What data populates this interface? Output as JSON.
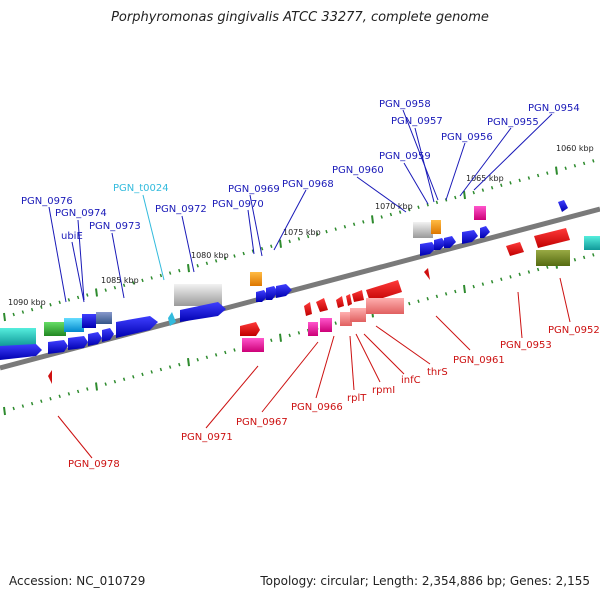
{
  "title": "Porphyromonas gingivalis ATCC 33277, complete genome",
  "footer": {
    "accession": "Accession: NC_010729",
    "summary": "Topology: circular; Length: 2,354,886 bp; Genes: 2,155"
  },
  "colors": {
    "plus_label": "#1a1ab8",
    "minus_label": "#cc1111",
    "rna_label": "#33bbdd",
    "backbone": "#808080",
    "tick": "#2e8b2e"
  },
  "kbp_markers": [
    "1090 kbp",
    "1085 kbp",
    "1080 kbp",
    "1075 kbp",
    "1070 kbp",
    "1065 kbp",
    "1060 kbp"
  ],
  "plus_labels": [
    "PGN_0976",
    "PGN_0974",
    "ubiE",
    "PGN_0973",
    "PGN_t0024",
    "PGN_0972",
    "PGN_0969",
    "PGN_0970",
    "PGN_0968",
    "PGN_0960",
    "PGN_0959",
    "PGN_0957",
    "PGN_0958",
    "PGN_0956",
    "PGN_0955",
    "PGN_0954"
  ],
  "minus_labels": [
    "PGN_0978",
    "PGN_0971",
    "PGN_0967",
    "PGN_0966",
    "rplT",
    "rpmI",
    "infC",
    "thrS",
    "PGN_0961",
    "PGN_0953",
    "PGN_0952"
  ]
}
